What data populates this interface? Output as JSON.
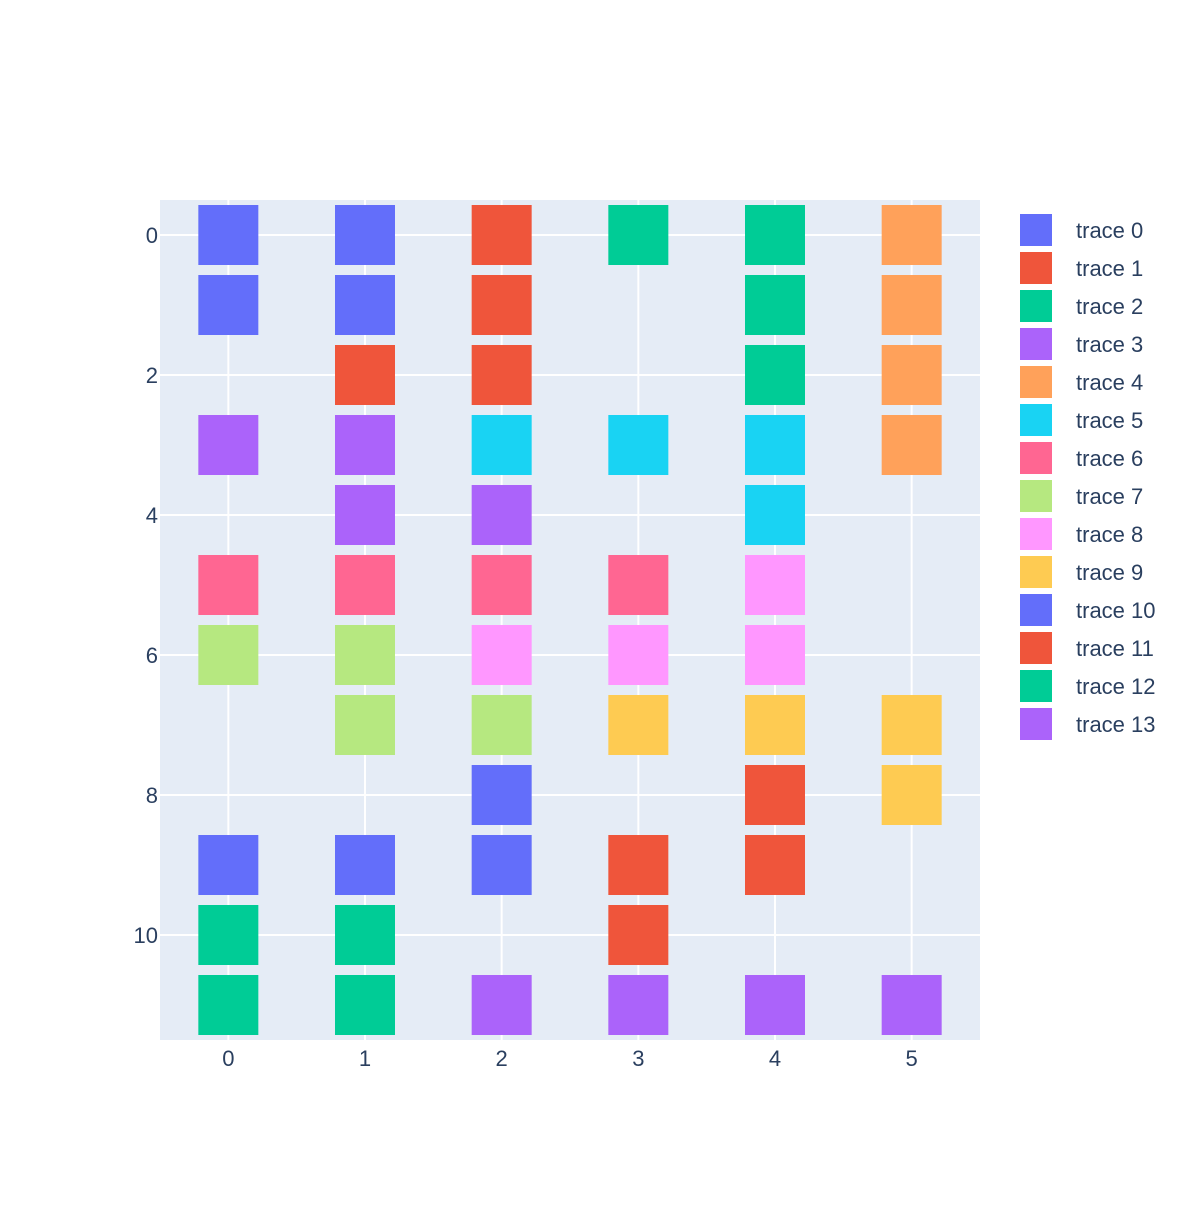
{
  "chart_data": {
    "type": "scatter",
    "marker": "square",
    "x_ticks": [
      "0",
      "1",
      "2",
      "3",
      "4",
      "5"
    ],
    "y_ticks": [
      "0",
      "2",
      "4",
      "6",
      "8",
      "10"
    ],
    "xlim": [
      -0.5,
      5.5
    ],
    "ylim": [
      11.5,
      -0.5
    ],
    "y_reversed": true,
    "grid": true,
    "plot_background": "#e5ecf6",
    "legend_position": "right",
    "series": [
      {
        "name": "trace 0",
        "color": "#636efa",
        "points": [
          [
            0,
            0
          ],
          [
            0,
            1
          ],
          [
            1,
            0
          ],
          [
            1,
            1
          ]
        ]
      },
      {
        "name": "trace 1",
        "color": "#ef553b",
        "points": [
          [
            1,
            2
          ],
          [
            2,
            0
          ],
          [
            2,
            1
          ],
          [
            2,
            2
          ]
        ]
      },
      {
        "name": "trace 2",
        "color": "#00cc96",
        "points": [
          [
            3,
            0
          ],
          [
            4,
            0
          ],
          [
            4,
            1
          ],
          [
            4,
            2
          ]
        ]
      },
      {
        "name": "trace 3",
        "color": "#ab63fa",
        "points": [
          [
            0,
            3
          ],
          [
            1,
            3
          ],
          [
            1,
            4
          ],
          [
            2,
            4
          ]
        ]
      },
      {
        "name": "trace 4",
        "color": "#ffa15a",
        "points": [
          [
            5,
            0
          ],
          [
            5,
            1
          ],
          [
            5,
            2
          ],
          [
            5,
            3
          ]
        ]
      },
      {
        "name": "trace 5",
        "color": "#19d3f3",
        "points": [
          [
            2,
            3
          ],
          [
            3,
            3
          ],
          [
            4,
            3
          ],
          [
            4,
            4
          ]
        ]
      },
      {
        "name": "trace 6",
        "color": "#ff6692",
        "points": [
          [
            0,
            5
          ],
          [
            1,
            5
          ],
          [
            2,
            5
          ],
          [
            3,
            5
          ]
        ]
      },
      {
        "name": "trace 7",
        "color": "#b6e880",
        "points": [
          [
            0,
            6
          ],
          [
            1,
            6
          ],
          [
            1,
            7
          ],
          [
            2,
            7
          ]
        ]
      },
      {
        "name": "trace 8",
        "color": "#ff97ff",
        "points": [
          [
            2,
            6
          ],
          [
            3,
            6
          ],
          [
            4,
            5
          ],
          [
            4,
            6
          ]
        ]
      },
      {
        "name": "trace 9",
        "color": "#fecb52",
        "points": [
          [
            3,
            7
          ],
          [
            4,
            7
          ],
          [
            5,
            7
          ],
          [
            5,
            8
          ]
        ]
      },
      {
        "name": "trace 10",
        "color": "#636efa",
        "points": [
          [
            0,
            9
          ],
          [
            1,
            9
          ],
          [
            2,
            8
          ],
          [
            2,
            9
          ]
        ]
      },
      {
        "name": "trace 11",
        "color": "#ef553b",
        "points": [
          [
            3,
            9
          ],
          [
            3,
            10
          ],
          [
            4,
            8
          ],
          [
            4,
            9
          ]
        ]
      },
      {
        "name": "trace 12",
        "color": "#00cc96",
        "points": [
          [
            0,
            10
          ],
          [
            0,
            11
          ],
          [
            1,
            10
          ],
          [
            1,
            11
          ]
        ]
      },
      {
        "name": "trace 13",
        "color": "#ab63fa",
        "points": [
          [
            2,
            11
          ],
          [
            3,
            11
          ],
          [
            4,
            11
          ],
          [
            5,
            11
          ]
        ]
      }
    ]
  }
}
